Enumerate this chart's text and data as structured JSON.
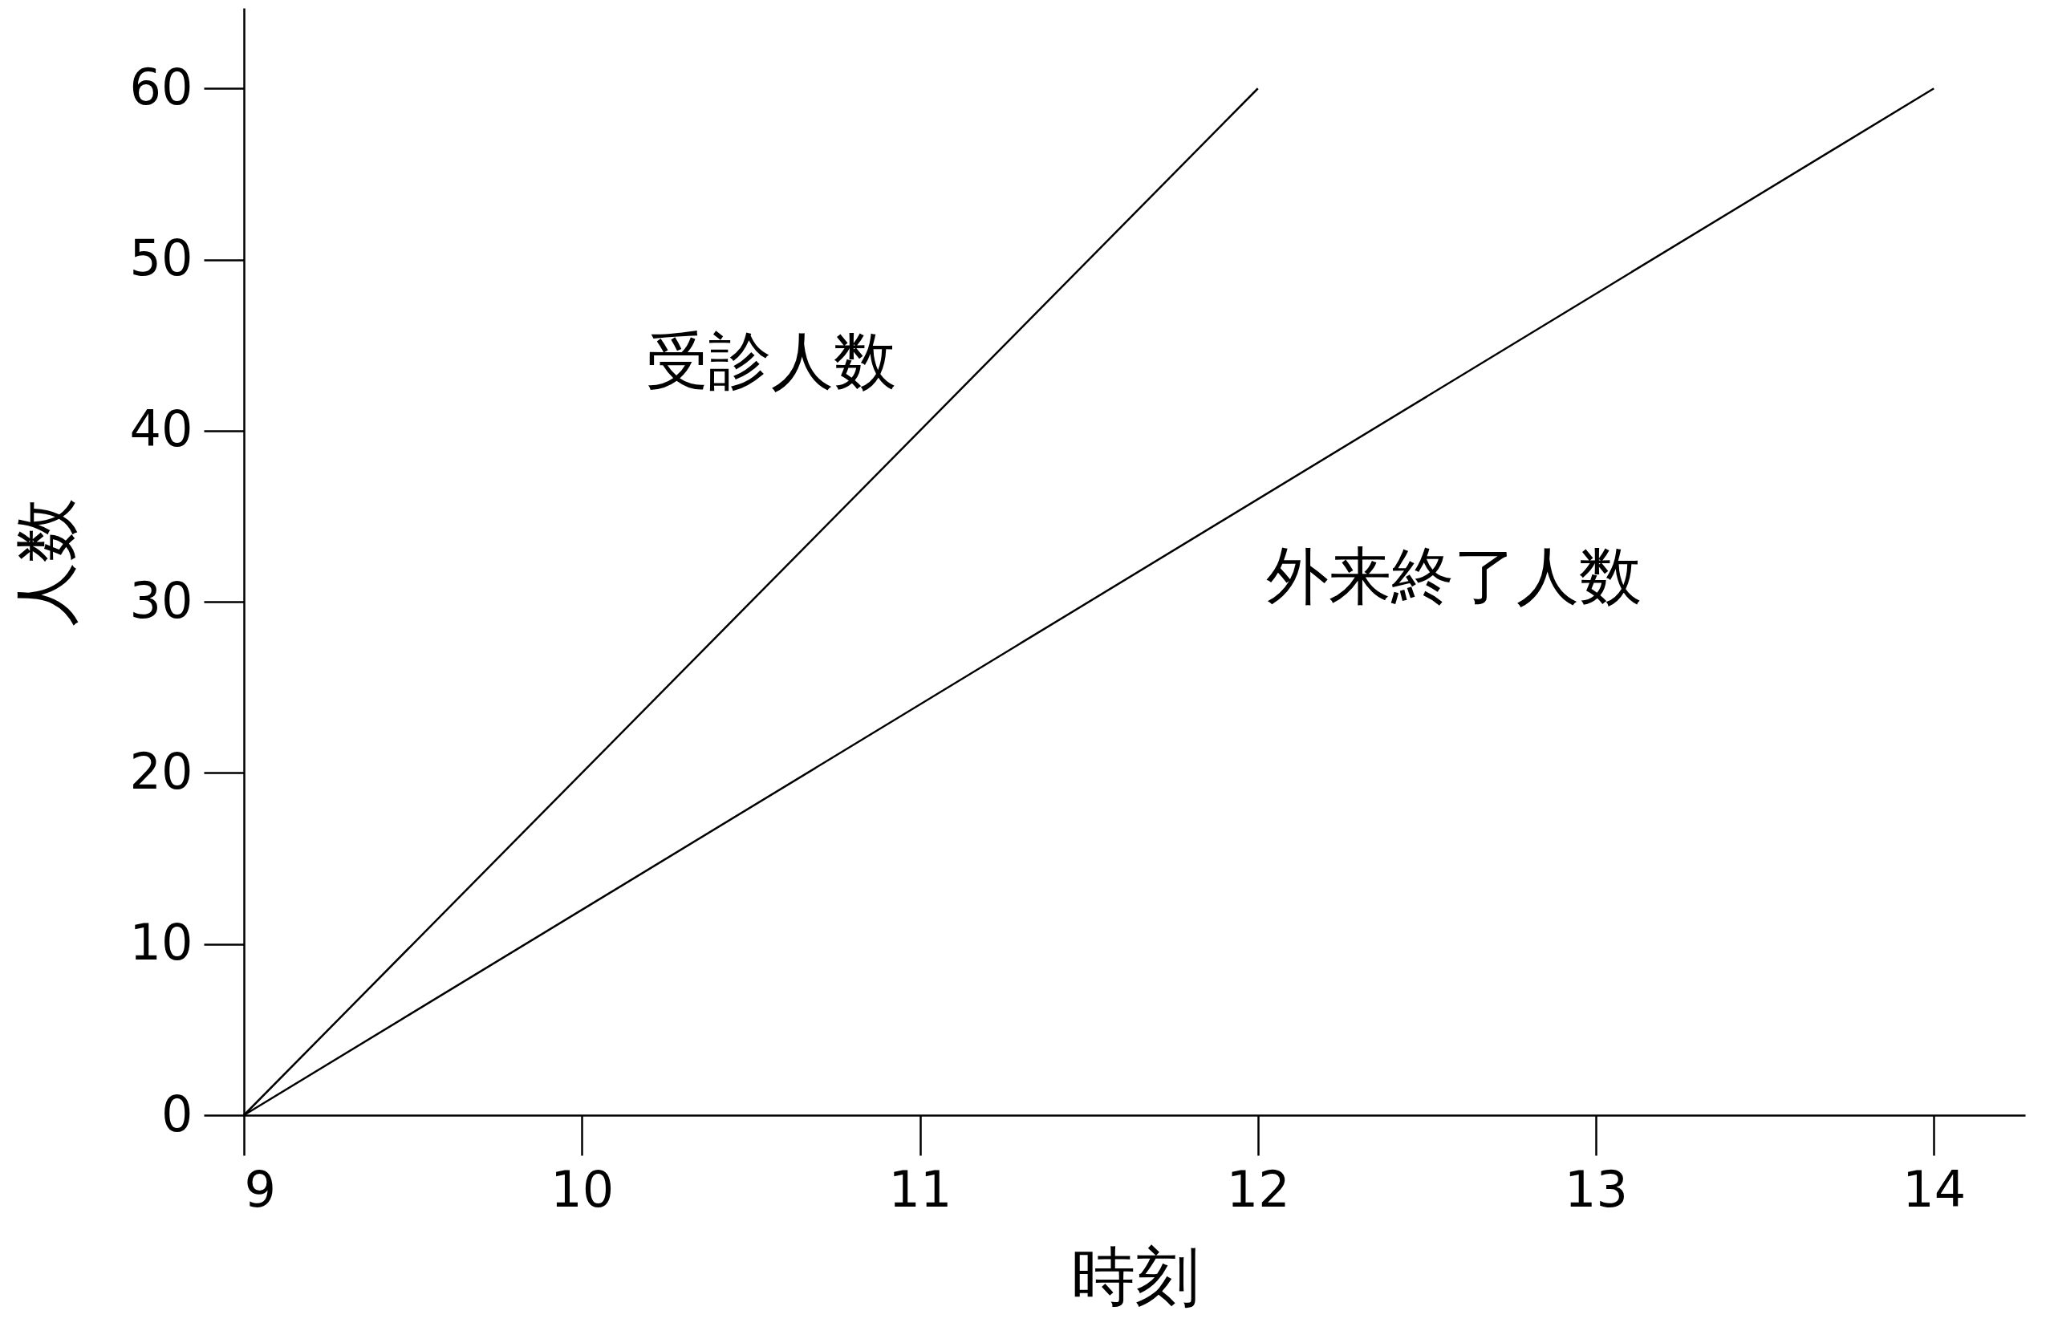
{
  "chart_data": {
    "type": "line",
    "xlabel": "時刻",
    "ylabel": "人数",
    "xlim": [
      9,
      14.27
    ],
    "xticks": [
      9,
      10,
      11,
      12,
      13,
      14
    ],
    "ylim": [
      0,
      64.7
    ],
    "yticks": [
      0,
      10,
      20,
      30,
      40,
      50,
      60
    ],
    "grid": false,
    "marker": "none",
    "line_style": "solid",
    "series": [
      {
        "name": "受診人数",
        "color": "#000000",
        "x": [
          9,
          12
        ],
        "values": [
          0,
          60
        ]
      },
      {
        "name": "外来終了人数",
        "color": "#000000",
        "x": [
          9,
          14
        ],
        "values": [
          0,
          60
        ]
      }
    ]
  }
}
